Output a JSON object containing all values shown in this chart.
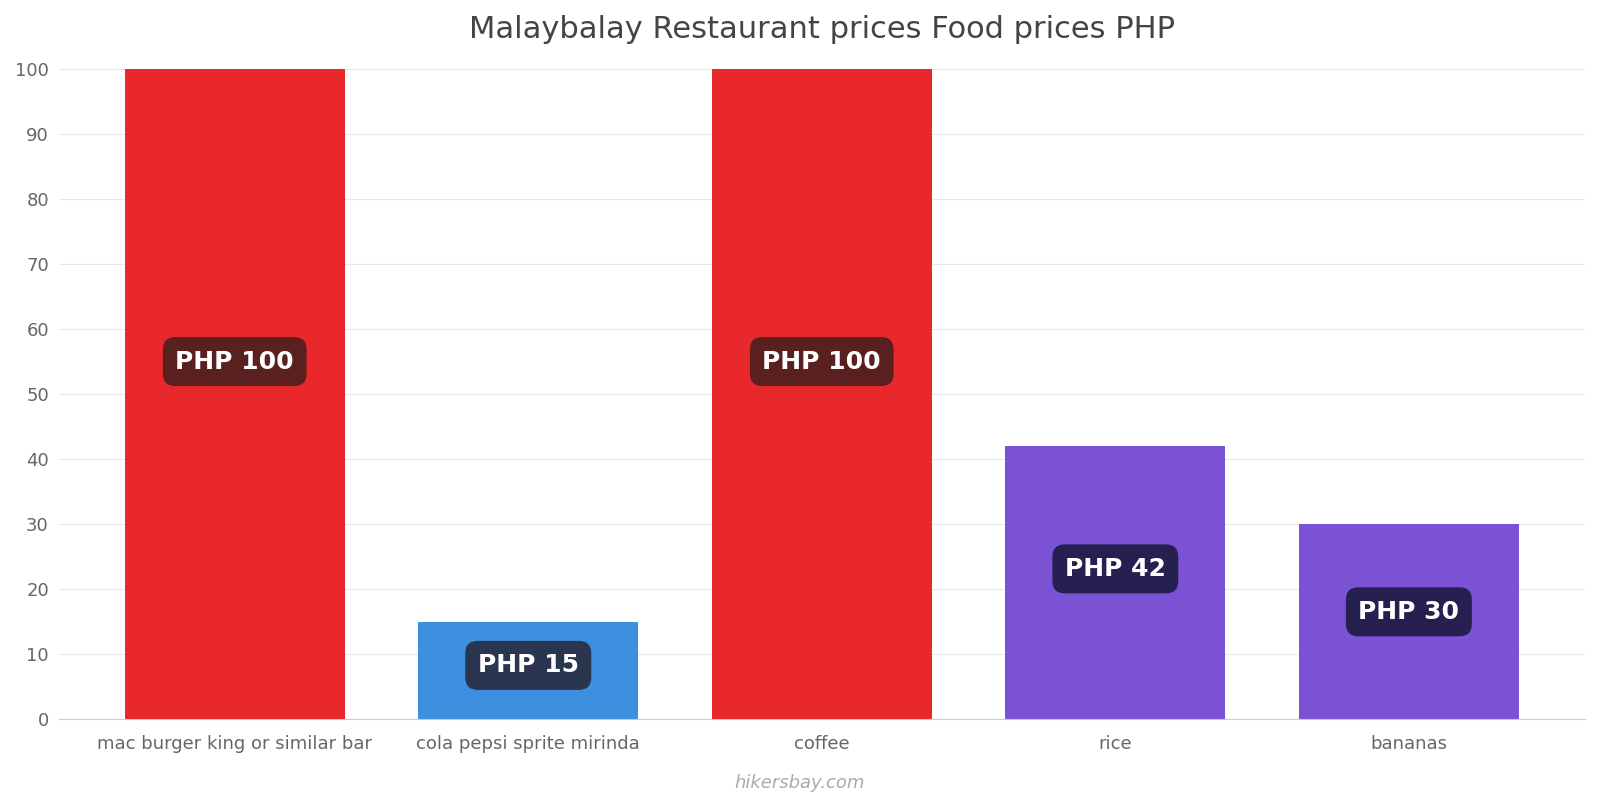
{
  "categories": [
    "mac burger king or similar bar",
    "cola pepsi sprite mirinda",
    "coffee",
    "rice",
    "bananas"
  ],
  "values": [
    100,
    15,
    100,
    42,
    30
  ],
  "bar_colors": [
    "#e8282b",
    "#3d8fe0",
    "#e8282b",
    "#7b52d4",
    "#7b52d4"
  ],
  "label_bg_colors": [
    "#5a1f1f",
    "#2a3550",
    "#5a1f1f",
    "#252050",
    "#252050"
  ],
  "labels": [
    "PHP 100",
    "PHP 15",
    "PHP 100",
    "PHP 42",
    "PHP 30"
  ],
  "title": "Malaybalay Restaurant prices Food prices PHP",
  "ylim": [
    0,
    100
  ],
  "yticks": [
    0,
    10,
    20,
    30,
    40,
    50,
    60,
    70,
    80,
    90,
    100
  ],
  "watermark": "hikersbay.com",
  "title_fontsize": 22,
  "label_fontsize": 18,
  "tick_fontsize": 13,
  "bg_color": "#ffffff",
  "axis_color": "#cccccc",
  "title_color": "#444444",
  "bar_width": 0.75
}
